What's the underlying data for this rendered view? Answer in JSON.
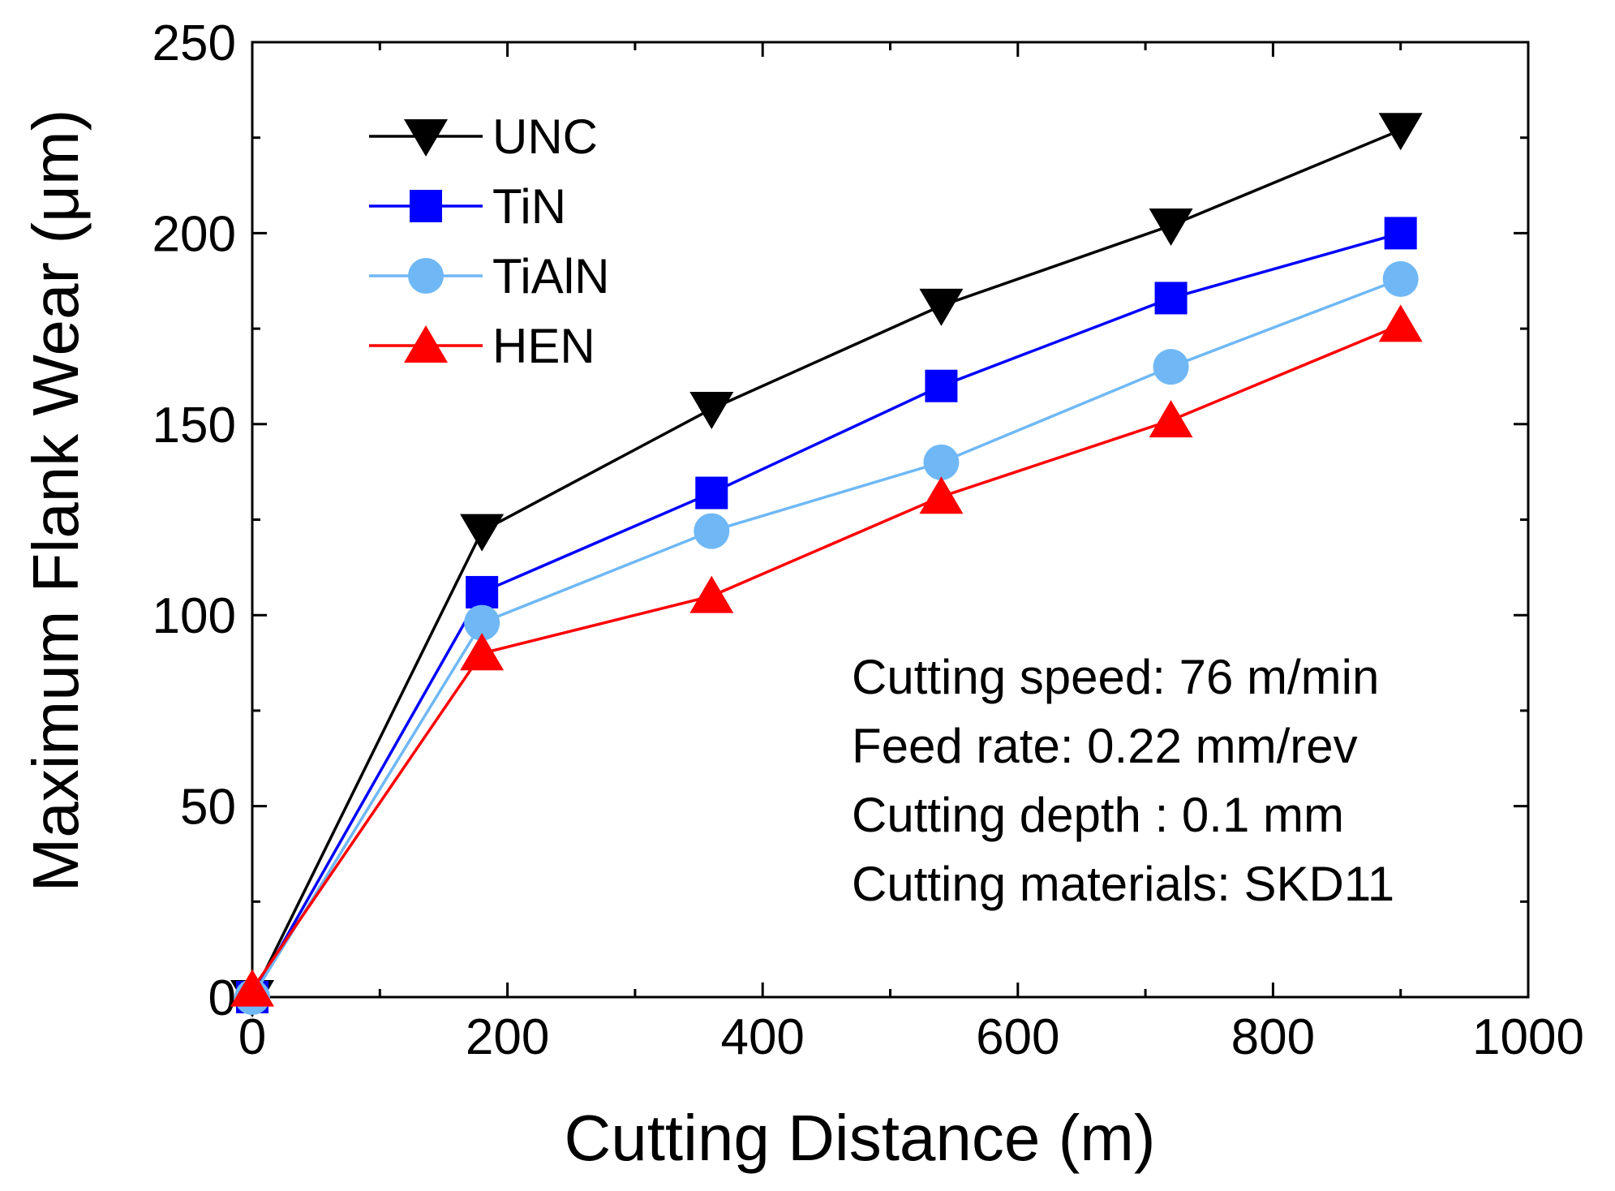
{
  "chart_data": {
    "type": "line",
    "title": "",
    "xlabel": "Cutting Distance (m)",
    "ylabel": "Maximum Flank Wear (μm)",
    "xlim": [
      0,
      1000
    ],
    "ylim": [
      0,
      250
    ],
    "xticks": [
      0,
      200,
      400,
      600,
      800,
      1000
    ],
    "yticks": [
      0,
      50,
      100,
      150,
      200,
      250
    ],
    "xtick_labels": [
      "0",
      "200",
      "400",
      "600",
      "800",
      "1000"
    ],
    "ytick_labels": [
      "0",
      "50",
      "100",
      "150",
      "200",
      "250"
    ],
    "grid": false,
    "legend_position": "top-left",
    "x": [
      0,
      180,
      360,
      540,
      720,
      900
    ],
    "series": [
      {
        "name": "UNC",
        "marker": "triangle-down",
        "color": "#000000",
        "values": [
          0,
          122,
          154,
          181,
          202,
          227
        ]
      },
      {
        "name": "TiN",
        "marker": "square",
        "color": "#0000ff",
        "values": [
          0,
          106,
          132,
          160,
          183,
          200
        ]
      },
      {
        "name": "TiAlN",
        "marker": "circle",
        "color": "#6fb8f5",
        "values": [
          0,
          98,
          122,
          140,
          165,
          188
        ]
      },
      {
        "name": "HEN",
        "marker": "triangle-up",
        "color": "#ff0000",
        "values": [
          2,
          90,
          105,
          131,
          151,
          176
        ]
      }
    ],
    "annotations": [
      "Cutting speed: 76 m/min",
      "Feed rate: 0.22 mm/rev",
      "Cutting depth : 0.1 mm",
      "Cutting materials: SKD11"
    ]
  }
}
